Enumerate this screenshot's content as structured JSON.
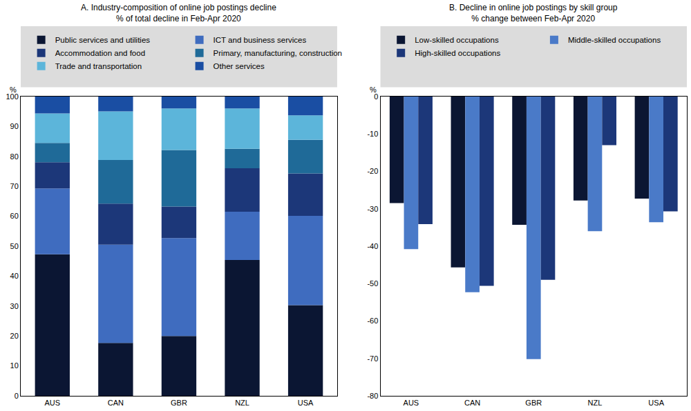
{
  "chart_data": [
    {
      "type": "bar",
      "stacked": true,
      "title": "A. Industry-composition of online job postings decline",
      "subtitle": "% of total decline in Feb-Apr 2020",
      "ylabel": "%",
      "categories": [
        "AUS",
        "CAN",
        "GBR",
        "NZL",
        "USA"
      ],
      "series": [
        {
          "name": "Public services and utilities",
          "color": "#0b1633",
          "values": [
            47.3,
            17.7,
            20.0,
            45.4,
            30.3
          ]
        },
        {
          "name": "ICT and business services",
          "color": "#3f6cbf",
          "values": [
            22.0,
            32.8,
            32.7,
            16.1,
            29.8
          ]
        },
        {
          "name": "Accommodation and food",
          "color": "#1c3779",
          "values": [
            8.7,
            13.7,
            10.5,
            14.5,
            14.2
          ]
        },
        {
          "name": "Primary, manufacturing, construction",
          "color": "#1f6a98",
          "values": [
            6.5,
            14.6,
            18.9,
            6.5,
            11.2
          ]
        },
        {
          "name": "Trade and transportation",
          "color": "#5cb5da",
          "values": [
            9.8,
            16.2,
            13.9,
            13.5,
            8.2
          ]
        },
        {
          "name": "Other services",
          "color": "#1a4ea3",
          "values": [
            5.7,
            5.0,
            4.0,
            4.0,
            6.3
          ]
        }
      ],
      "ylim": [
        0,
        100
      ],
      "yticks": [
        0,
        10,
        20,
        30,
        40,
        50,
        60,
        70,
        80,
        90,
        100
      ],
      "grid": false,
      "legend": "top"
    },
    {
      "type": "bar",
      "stacked": false,
      "title": "B. Decline in online job postings by skill group",
      "subtitle": "% change between Feb-Apr 2020",
      "ylabel": "%",
      "categories": [
        "AUS",
        "CAN",
        "GBR",
        "NZL",
        "USA"
      ],
      "series": [
        {
          "name": "Low-skilled occupations",
          "color": "#0b1633",
          "values": [
            -28.5,
            -45.7,
            -34.3,
            -27.8,
            -27.3
          ]
        },
        {
          "name": "Middle-skilled occupations",
          "color": "#4a7ac8",
          "values": [
            -40.8,
            -52.3,
            -70.2,
            -36.0,
            -33.6
          ]
        },
        {
          "name": "High-skilled occupations",
          "color": "#1c3779",
          "values": [
            -34.1,
            -50.6,
            -49.0,
            -13.0,
            -30.7
          ]
        }
      ],
      "ylim": [
        -80,
        0
      ],
      "yticks": [
        -80,
        -70,
        -60,
        -50,
        -40,
        -30,
        -20,
        -10,
        0
      ],
      "grid": false,
      "legend": "top"
    }
  ]
}
